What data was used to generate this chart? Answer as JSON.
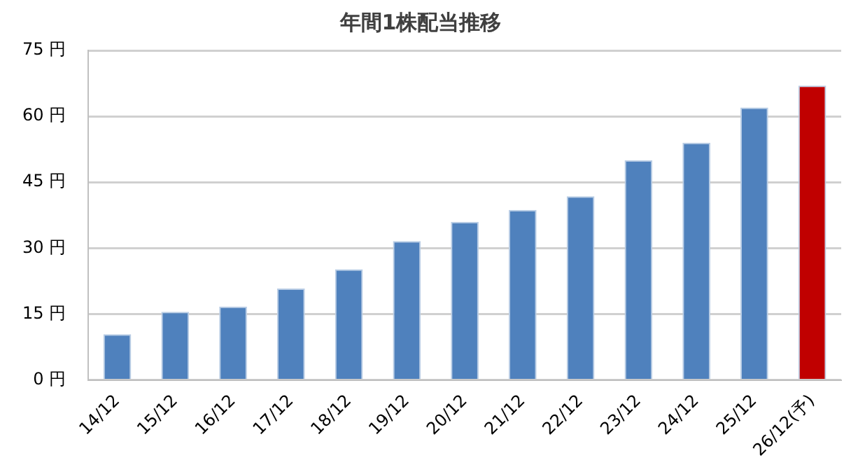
{
  "chart_data": {
    "type": "bar",
    "title": "年間1株配当推移",
    "categories": [
      "14/12",
      "15/12",
      "16/12",
      "17/12",
      "18/12",
      "19/12",
      "20/12",
      "21/12",
      "22/12",
      "23/12",
      "24/12",
      "25/12",
      "26/12(予)"
    ],
    "values": [
      10.4,
      15.5,
      16.7,
      20.8,
      25.2,
      31.6,
      36,
      38.7,
      41.8,
      50,
      54,
      62,
      67
    ],
    "colors": [
      "#4f81bd",
      "#4f81bd",
      "#4f81bd",
      "#4f81bd",
      "#4f81bd",
      "#4f81bd",
      "#4f81bd",
      "#4f81bd",
      "#4f81bd",
      "#4f81bd",
      "#4f81bd",
      "#4f81bd",
      "#c00000"
    ],
    "ylim": [
      0,
      75
    ],
    "yticks": [
      {
        "value": 0,
        "label": "0 円"
      },
      {
        "value": 15,
        "label": "15 円"
      },
      {
        "value": 30,
        "label": "30 円"
      },
      {
        "value": 45,
        "label": "45 円"
      },
      {
        "value": 60,
        "label": "60 円"
      },
      {
        "value": 75,
        "label": "75 円"
      }
    ],
    "grid": "y",
    "legend": false
  }
}
